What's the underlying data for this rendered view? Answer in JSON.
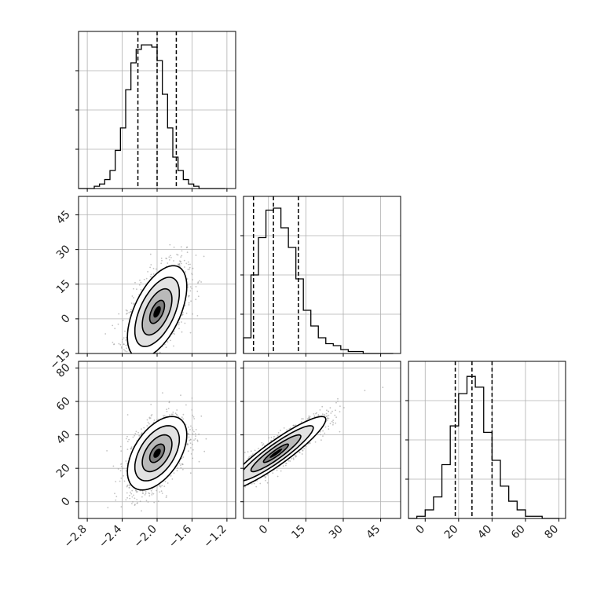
{
  "chart_data": [
    {
      "type": "histogram",
      "panel": "param-1-marginal",
      "bins": [
        -2.9,
        -2.84,
        -2.78,
        -2.72,
        -2.66,
        -2.6,
        -2.54,
        -2.48,
        -2.42,
        -2.36,
        -2.3,
        -2.24,
        -2.18,
        -2.12,
        -2.06,
        -2.0,
        -1.94,
        -1.88,
        -1.82,
        -1.76,
        -1.7,
        -1.64,
        -1.58,
        -1.52,
        -1.46,
        -1.4,
        -1.34,
        -1.28,
        -1.22
      ],
      "counts": [
        0,
        0,
        0,
        1,
        2,
        4,
        8,
        17,
        27,
        44,
        56,
        62,
        64,
        64,
        63,
        57,
        42,
        27,
        14,
        8,
        4,
        2,
        1,
        0,
        0,
        0,
        0,
        0
      ],
      "quantiles": [
        -2.22,
        -2.0,
        -1.78
      ],
      "xlim": [
        -2.9,
        -1.1
      ],
      "ylim": [
        0,
        70
      ]
    },
    {
      "type": "histogram",
      "panel": "param-2-marginal",
      "bins": [
        -10,
        -7,
        -4,
        -1,
        2,
        5,
        8,
        11,
        14,
        17,
        20,
        23,
        26,
        29,
        32,
        35,
        38,
        41,
        44,
        47,
        50
      ],
      "counts": [
        8,
        40,
        59,
        73,
        74,
        64,
        54,
        38,
        22,
        14,
        8,
        5,
        4,
        2,
        1,
        1,
        0,
        0,
        0,
        0
      ],
      "quantiles": [
        -6,
        2,
        12
      ],
      "xlim": [
        -10,
        53
      ],
      "ylim": [
        0,
        80
      ]
    },
    {
      "type": "histogram",
      "panel": "param-3-marginal",
      "bins": [
        -10,
        -5,
        0,
        5,
        10,
        15,
        20,
        25,
        30,
        35,
        40,
        45,
        50,
        55,
        60,
        65,
        70,
        75,
        80
      ],
      "counts": [
        0,
        1,
        4,
        10,
        25,
        43,
        58,
        66,
        61,
        40,
        27,
        15,
        8,
        4,
        1,
        1,
        0,
        0
      ],
      "quantiles": [
        18,
        28,
        40
      ],
      "xlim": [
        -10,
        84
      ],
      "ylim": [
        0,
        73
      ]
    },
    {
      "type": "scatter-density",
      "panel": "param-1-vs-param-2",
      "x_mean": -2.0,
      "x_sd": 0.17,
      "y_mean": 3,
      "y_sd": 10,
      "rho": 0.55,
      "contour_levels_sigma": [
        0.5,
        1.0,
        1.5,
        2.0
      ],
      "xlim": [
        -2.9,
        -1.1
      ],
      "ylim": [
        -15,
        53
      ]
    },
    {
      "type": "scatter-density",
      "panel": "param-1-vs-param-3",
      "x_mean": -2.0,
      "x_sd": 0.17,
      "y_mean": 29,
      "y_sd": 11,
      "rho": 0.5,
      "contour_levels_sigma": [
        0.5,
        1.0,
        1.5,
        2.0
      ],
      "xlim": [
        -2.9,
        -1.1
      ],
      "ylim": [
        -10,
        84
      ]
    },
    {
      "type": "scatter-density",
      "panel": "param-2-vs-param-3",
      "x_mean": 3,
      "x_sd": 10,
      "y_mean": 29,
      "y_sd": 11,
      "rho": 0.92,
      "contour_levels_sigma": [
        0.5,
        1.0,
        1.5,
        2.0
      ],
      "xlim": [
        -10,
        53
      ],
      "ylim": [
        -10,
        84
      ]
    }
  ],
  "axes": {
    "p1_ticks": [
      -2.8,
      -2.4,
      -2.0,
      -1.6,
      -1.2
    ],
    "p1_labels": [
      "−2.8",
      "−2.4",
      "−2.0",
      "−1.6",
      "−1.2"
    ],
    "p2_ticks": [
      -15,
      0,
      15,
      30,
      45
    ],
    "p2_labels": [
      "−15",
      "0",
      "15",
      "30",
      "45"
    ],
    "p3_ticks": [
      0,
      20,
      40,
      60,
      80
    ],
    "p3_labels": [
      "0",
      "20",
      "40",
      "60",
      "80"
    ]
  }
}
